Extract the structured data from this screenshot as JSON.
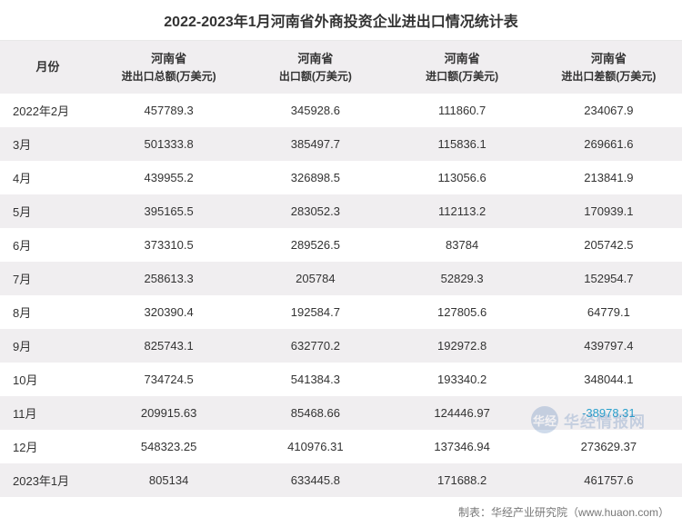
{
  "title": "2022-2023年1月河南省外商投资企业进出口情况统计表",
  "columns": [
    {
      "line1": "月份",
      "line2": ""
    },
    {
      "line1": "河南省",
      "line2": "进出口总额(万美元)"
    },
    {
      "line1": "河南省",
      "line2": "出口额(万美元)"
    },
    {
      "line1": "河南省",
      "line2": "进口额(万美元)"
    },
    {
      "line1": "河南省",
      "line2": "进出口差额(万美元)"
    }
  ],
  "rows": [
    {
      "month": "2022年2月",
      "total": "457789.3",
      "export": "345928.6",
      "import": "111860.7",
      "balance": "234067.9",
      "negative": false
    },
    {
      "month": "3月",
      "total": "501333.8",
      "export": "385497.7",
      "import": "115836.1",
      "balance": "269661.6",
      "negative": false
    },
    {
      "month": "4月",
      "total": "439955.2",
      "export": "326898.5",
      "import": "113056.6",
      "balance": "213841.9",
      "negative": false
    },
    {
      "month": "5月",
      "total": "395165.5",
      "export": "283052.3",
      "import": "112113.2",
      "balance": "170939.1",
      "negative": false
    },
    {
      "month": "6月",
      "total": "373310.5",
      "export": "289526.5",
      "import": "83784",
      "balance": "205742.5",
      "negative": false
    },
    {
      "month": "7月",
      "total": "258613.3",
      "export": "205784",
      "import": "52829.3",
      "balance": "152954.7",
      "negative": false
    },
    {
      "month": "8月",
      "total": "320390.4",
      "export": "192584.7",
      "import": "127805.6",
      "balance": "64779.1",
      "negative": false
    },
    {
      "month": "9月",
      "total": "825743.1",
      "export": "632770.2",
      "import": "192972.8",
      "balance": "439797.4",
      "negative": false
    },
    {
      "month": "10月",
      "total": "734724.5",
      "export": "541384.3",
      "import": "193340.2",
      "balance": "348044.1",
      "negative": false
    },
    {
      "month": "11月",
      "total": "209915.63",
      "export": "85468.66",
      "import": "124446.97",
      "balance": "-38978.31",
      "negative": true
    },
    {
      "month": "12月",
      "total": "548323.25",
      "export": "410976.31",
      "import": "137346.94",
      "balance": "273629.37",
      "negative": false
    },
    {
      "month": "2023年1月",
      "total": "805134",
      "export": "633445.8",
      "import": "171688.2",
      "balance": "461757.6",
      "negative": false
    }
  ],
  "footer": "制表：华经产业研究院（www.huaon.com）",
  "watermark": {
    "icon": "华经",
    "text": "华经情报网"
  },
  "colors": {
    "row_odd": "#ffffff",
    "row_even": "#f0eef0",
    "header_bg": "#f0eef0",
    "text": "#333333",
    "negative": "#2aa0cc",
    "footer_text": "#777777",
    "watermark": "#2b5fa8"
  }
}
